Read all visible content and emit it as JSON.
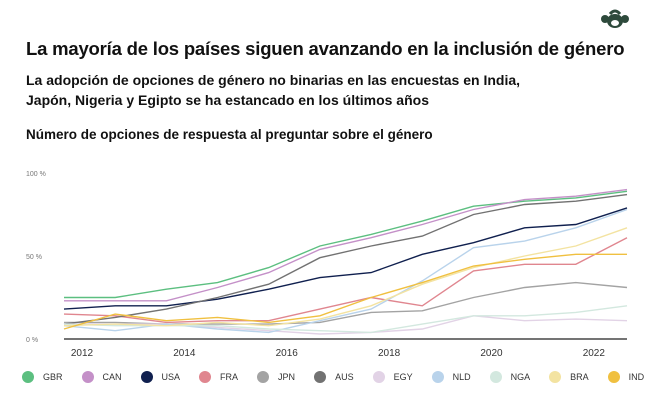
{
  "header": {
    "title": "La mayoría de los países siguen avanzando en la inclusión de género",
    "subtitle": "La adopción de opciones de género no binarias en las encuestas en India, Japón, Nigeria y Egipto se ha estancado en los últimos años",
    "logo": "surveymonkey-logo-icon"
  },
  "chart_data": {
    "type": "line",
    "title": "Número de opciones de respuesta al preguntar sobre el género",
    "x": [
      2012,
      2013,
      2014,
      2015,
      2016,
      2017,
      2018,
      2019,
      2020,
      2021,
      2022,
      2023
    ],
    "xticks": [
      "2012",
      "2014",
      "2016",
      "2018",
      "2020",
      "2022"
    ],
    "yticks": [
      "0 %",
      "50 %",
      "100 %"
    ],
    "ylim": [
      0,
      100
    ],
    "grid": false,
    "legend": "bottom",
    "series": [
      {
        "name": "GBR",
        "color": "#5cbf80",
        "values": [
          25,
          25,
          30,
          34,
          43,
          56,
          63,
          71,
          80,
          83,
          85,
          89
        ]
      },
      {
        "name": "CAN",
        "color": "#c490c8",
        "values": [
          23,
          23,
          23,
          31,
          40,
          54,
          61,
          69,
          78,
          84,
          86,
          90
        ]
      },
      {
        "name": "USA",
        "color": "#10204f",
        "values": [
          18,
          20,
          20,
          24,
          30,
          37,
          40,
          51,
          58,
          67,
          69,
          79
        ]
      },
      {
        "name": "FRA",
        "color": "#e0868f",
        "values": [
          15,
          14,
          10,
          11,
          11,
          18,
          25,
          20,
          41,
          45,
          45,
          61
        ]
      },
      {
        "name": "JPN",
        "color": "#a3a3a3",
        "values": [
          10,
          10,
          9,
          9,
          9,
          10,
          16,
          17,
          25,
          31,
          34,
          31
        ]
      },
      {
        "name": "AUS",
        "color": "#727272",
        "values": [
          9,
          13,
          18,
          25,
          33,
          49,
          56,
          62,
          75,
          81,
          83,
          87
        ]
      },
      {
        "name": "EGY",
        "color": "#e2d3e6",
        "values": [
          9,
          9,
          9,
          7,
          5,
          3,
          4,
          6,
          14,
          11,
          12,
          11
        ]
      },
      {
        "name": "NLD",
        "color": "#b9d3eb",
        "values": [
          8,
          5,
          9,
          6,
          4,
          11,
          18,
          35,
          55,
          59,
          67,
          78
        ]
      },
      {
        "name": "NGA",
        "color": "#d3e8df",
        "values": [
          9,
          8,
          8,
          8,
          6,
          5,
          4,
          9,
          14,
          14,
          16,
          20
        ]
      },
      {
        "name": "BRA",
        "color": "#f3e3a1",
        "values": [
          8,
          9,
          8,
          10,
          8,
          12,
          20,
          33,
          43,
          50,
          56,
          67
        ]
      },
      {
        "name": "IND",
        "color": "#f0c040",
        "values": [
          6,
          15,
          11,
          13,
          10,
          14,
          25,
          34,
          44,
          48,
          51,
          51
        ]
      }
    ]
  }
}
